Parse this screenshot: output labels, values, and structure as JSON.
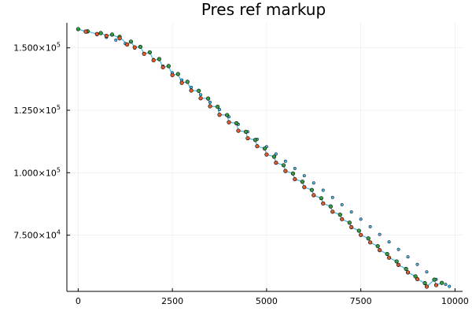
{
  "chart_data": {
    "type": "line",
    "title": "Pres ref markup",
    "xlabel": "",
    "ylabel": "",
    "xlim": [
      -300,
      10200
    ],
    "ylim": [
      52500,
      160000
    ],
    "xticks": [
      {
        "value": 0,
        "label": "0"
      },
      {
        "value": 2500,
        "label": "2500"
      },
      {
        "value": 5000,
        "label": "5000"
      },
      {
        "value": 7500,
        "label": "7500"
      },
      {
        "value": 10000,
        "label": "10000"
      }
    ],
    "yticks": [
      {
        "value": 75000,
        "mantissa": "7.500×10",
        "exp": "4"
      },
      {
        "value": 100000,
        "mantissa": "1.000×10",
        "exp": "5"
      },
      {
        "value": 125000,
        "mantissa": "1.250×10",
        "exp": "5"
      },
      {
        "value": 150000,
        "mantissa": "1.500×10",
        "exp": "5"
      }
    ],
    "grid": true,
    "legend": "none",
    "colors": {
      "line": "#3fb6e6",
      "upper_marker": "#2e9e3e",
      "lower_marker": "#e05a2a",
      "marker_edge": "#000000"
    },
    "series": [
      {
        "values": [
          [
            0,
            157500
          ],
          [
            250,
            156400
          ],
          [
            500,
            155300
          ],
          [
            750,
            154200
          ],
          [
            1000,
            153100
          ],
          [
            1250,
            151700
          ],
          [
            1500,
            149900
          ],
          [
            1750,
            147700
          ],
          [
            2000,
            145300
          ],
          [
            2250,
            142700
          ],
          [
            2500,
            140000
          ],
          [
            2750,
            137100
          ],
          [
            3000,
            134200
          ],
          [
            3250,
            131200
          ],
          [
            3500,
            128200
          ],
          [
            3750,
            125300
          ],
          [
            4000,
            122400
          ],
          [
            4250,
            119400
          ],
          [
            4500,
            116400
          ],
          [
            4750,
            113400
          ],
          [
            5000,
            110400
          ],
          [
            5250,
            107500
          ],
          [
            5500,
            104600
          ],
          [
            5750,
            101700
          ],
          [
            6000,
            98800
          ],
          [
            6250,
            95900
          ],
          [
            6500,
            93000
          ],
          [
            6750,
            90100
          ],
          [
            7000,
            87200
          ],
          [
            7250,
            84300
          ],
          [
            7500,
            81400
          ],
          [
            7750,
            78400
          ],
          [
            8000,
            75300
          ],
          [
            8250,
            72300
          ],
          [
            8500,
            69300
          ],
          [
            8750,
            66300
          ],
          [
            9000,
            63300
          ],
          [
            9250,
            60300
          ],
          [
            9500,
            57300
          ],
          [
            9750,
            55300
          ],
          [
            9850,
            54500
          ]
        ]
      },
      {
        "values": [
          [
            0,
            157500
          ],
          [
            250,
            156600
          ],
          [
            600,
            155900
          ],
          [
            900,
            155300
          ],
          [
            1100,
            154400
          ],
          [
            1400,
            152500
          ],
          [
            1650,
            150400
          ],
          [
            1900,
            148200
          ],
          [
            2150,
            145500
          ],
          [
            2400,
            142700
          ],
          [
            2650,
            139500
          ],
          [
            2900,
            136400
          ],
          [
            3200,
            132800
          ],
          [
            3450,
            129700
          ],
          [
            3700,
            126400
          ],
          [
            3950,
            123100
          ],
          [
            4200,
            119800
          ],
          [
            4450,
            116400
          ],
          [
            4700,
            113100
          ],
          [
            4950,
            109700
          ],
          [
            5200,
            106400
          ],
          [
            5450,
            103000
          ],
          [
            5700,
            99700
          ],
          [
            5950,
            96400
          ],
          [
            6200,
            93100
          ],
          [
            6450,
            89800
          ],
          [
            6700,
            86500
          ],
          [
            6950,
            83200
          ],
          [
            7200,
            80000
          ],
          [
            7450,
            76800
          ],
          [
            7700,
            73700
          ],
          [
            7950,
            70600
          ],
          [
            8200,
            67500
          ],
          [
            8450,
            64500
          ],
          [
            8700,
            61500
          ],
          [
            8950,
            58500
          ],
          [
            9200,
            55800
          ],
          [
            9450,
            57200
          ],
          [
            9650,
            55900
          ]
        ]
      },
      {
        "values": [
          [
            200,
            156500
          ],
          [
            500,
            155500
          ],
          [
            750,
            154800
          ],
          [
            1100,
            153800
          ],
          [
            1300,
            151300
          ],
          [
            1500,
            150200
          ],
          [
            1750,
            147600
          ],
          [
            2000,
            145000
          ],
          [
            2250,
            142200
          ],
          [
            2500,
            139100
          ],
          [
            2750,
            136000
          ],
          [
            3000,
            132900
          ],
          [
            3250,
            129800
          ],
          [
            3500,
            126600
          ],
          [
            3750,
            123200
          ],
          [
            4000,
            120200
          ],
          [
            4250,
            116800
          ],
          [
            4500,
            113800
          ],
          [
            4750,
            110600
          ],
          [
            5000,
            107300
          ],
          [
            5250,
            104000
          ],
          [
            5500,
            100700
          ],
          [
            5750,
            97400
          ],
          [
            6000,
            94200
          ],
          [
            6250,
            91000
          ],
          [
            6500,
            87700
          ],
          [
            6750,
            84400
          ],
          [
            7000,
            81400
          ],
          [
            7250,
            78200
          ],
          [
            7500,
            75100
          ],
          [
            7750,
            72100
          ],
          [
            8000,
            69000
          ],
          [
            8250,
            66000
          ],
          [
            8500,
            63100
          ],
          [
            8750,
            60100
          ],
          [
            9000,
            57400
          ],
          [
            9250,
            54400
          ],
          [
            9500,
            55000
          ]
        ]
      }
    ]
  }
}
